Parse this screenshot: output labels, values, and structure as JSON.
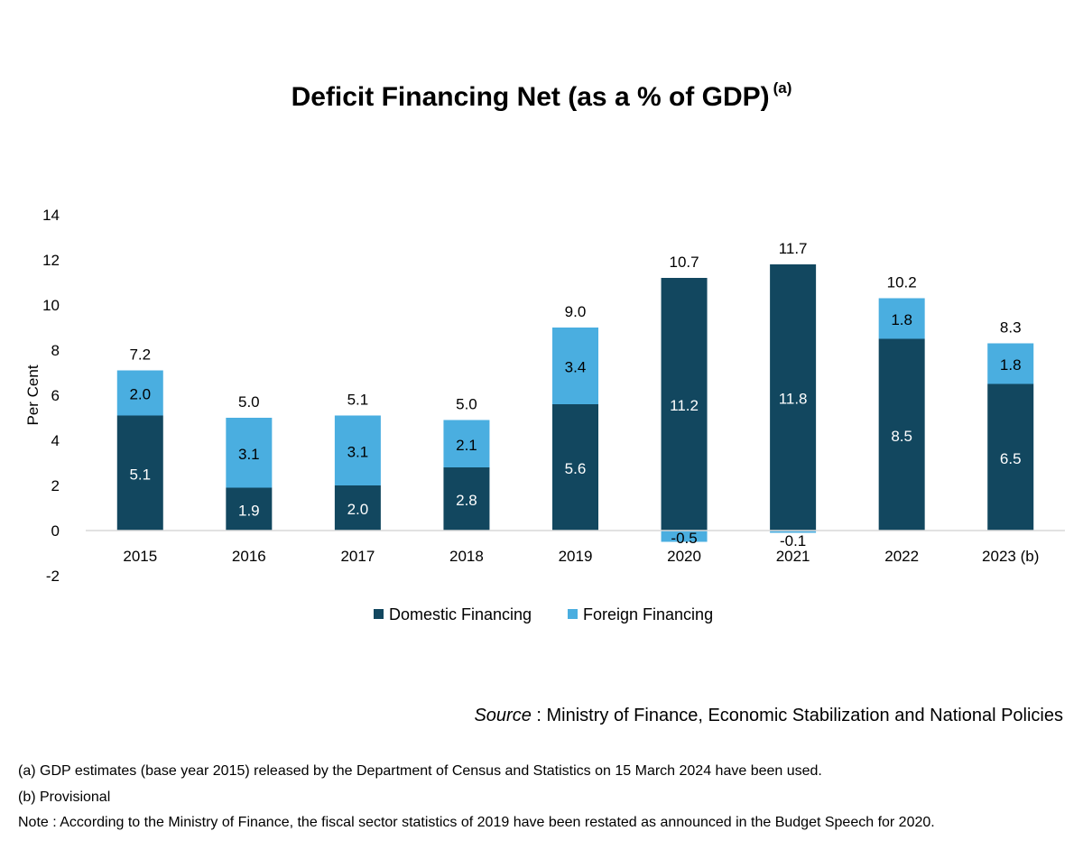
{
  "title": "Deficit Financing Net (as a % of GDP)",
  "title_note": "(a)",
  "chart_data": {
    "type": "bar",
    "stacked": true,
    "categories": [
      "2015",
      "2016",
      "2017",
      "2018",
      "2019",
      "2020",
      "2021",
      "2022",
      "2023 (b)"
    ],
    "series": [
      {
        "name": "Domestic Financing",
        "color": "#12475f",
        "values": [
          5.1,
          1.9,
          2.0,
          2.8,
          5.6,
          11.2,
          11.8,
          8.5,
          6.5
        ],
        "labels": [
          "5.1",
          "1.9",
          "2.0",
          "2.8",
          "5.6",
          "11.2",
          "11.8",
          "8.5",
          "6.5"
        ]
      },
      {
        "name": "Foreign Financing",
        "color": "#4aaee0",
        "values": [
          2.0,
          3.1,
          3.1,
          2.1,
          3.4,
          -0.5,
          -0.1,
          1.8,
          1.8
        ],
        "labels": [
          "2.0",
          "3.1",
          "3.1",
          "2.1",
          "3.4",
          "-0.5",
          "-0.1",
          "1.8",
          "1.8"
        ]
      }
    ],
    "totals": [
      "7.2",
      "5.0",
      "5.1",
      "5.0",
      "9.0",
      "10.7",
      "11.7",
      "10.2",
      "8.3"
    ],
    "ylabel": "Per Cent",
    "ylim": [
      -2,
      14
    ],
    "yticks": [
      "-2",
      "0",
      "2",
      "4",
      "6",
      "8",
      "10",
      "12",
      "14"
    ],
    "grid": false,
    "legend_position": "bottom"
  },
  "source": {
    "label": "Source",
    "text": " : Ministry of Finance, Economic Stabilization and National Policies"
  },
  "notes": [
    "(a) GDP estimates (base year 2015) released by the Department of Census and Statistics on  15 March 2024 have been used.",
    "(b) Provisional",
    "Note : According to the Ministry of Finance, the fiscal sector statistics of 2019 have been restated as announced in the Budget Speech for 2020."
  ]
}
